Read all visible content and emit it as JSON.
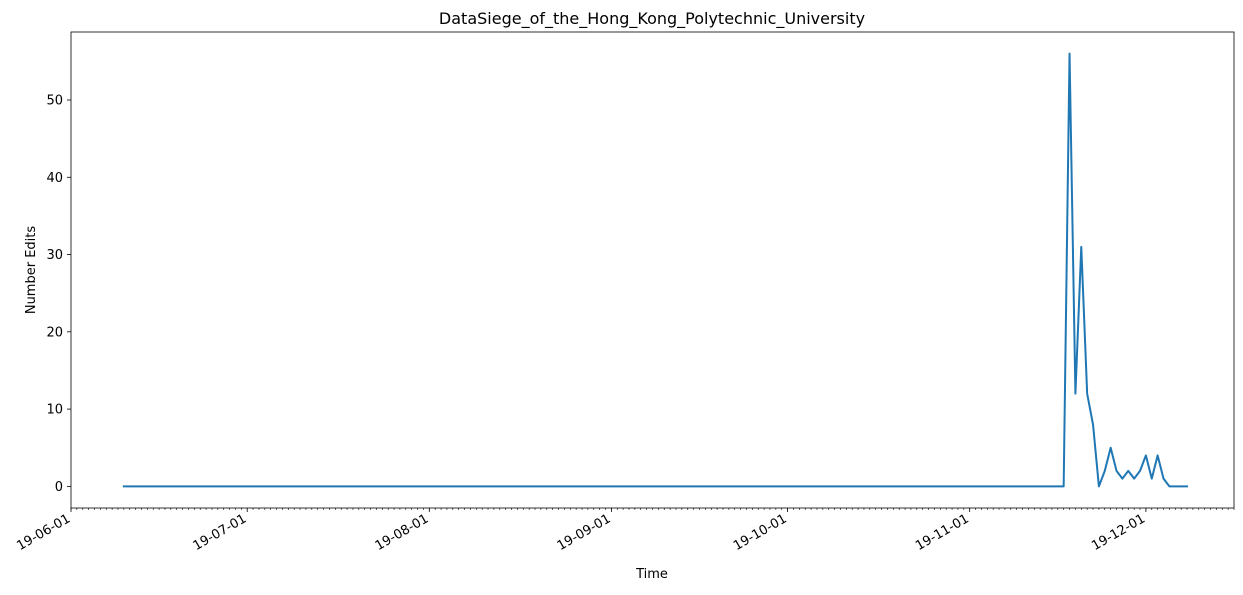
{
  "chart_data": {
    "type": "line",
    "title": "DataSiege_of_the_Hong_Kong_Polytechnic_University",
    "xlabel": "Time",
    "ylabel": "Number Edits",
    "x_tick_labels": [
      "19-06-01",
      "19-07-01",
      "19-08-01",
      "19-09-01",
      "19-10-01",
      "19-11-01",
      "19-12-01"
    ],
    "x_tick_dates": [
      "2019-06-01",
      "2019-07-01",
      "2019-08-01",
      "2019-09-01",
      "2019-10-01",
      "2019-11-01",
      "2019-12-01"
    ],
    "y_ticks": [
      0,
      10,
      20,
      30,
      40,
      50
    ],
    "xlim": [
      "2019-06-01",
      "2019-12-16"
    ],
    "ylim": [
      -2.8,
      58.8
    ],
    "grid": false,
    "minor_ticks": "daily",
    "series": [
      {
        "color": "#1f77b4",
        "x": [
          "2019-06-10",
          "2019-11-17",
          "2019-11-18",
          "2019-11-19",
          "2019-11-20",
          "2019-11-21",
          "2019-11-22",
          "2019-11-23",
          "2019-11-24",
          "2019-11-25",
          "2019-11-26",
          "2019-11-27",
          "2019-11-28",
          "2019-11-29",
          "2019-11-30",
          "2019-12-01",
          "2019-12-02",
          "2019-12-03",
          "2019-12-04",
          "2019-12-05",
          "2019-12-06",
          "2019-12-07",
          "2019-12-08"
        ],
        "y": [
          0,
          0,
          56,
          12,
          31,
          12,
          8,
          0,
          2,
          5,
          2,
          1,
          2,
          1,
          2,
          4,
          1,
          4,
          1,
          0,
          0,
          0,
          0
        ]
      }
    ]
  }
}
